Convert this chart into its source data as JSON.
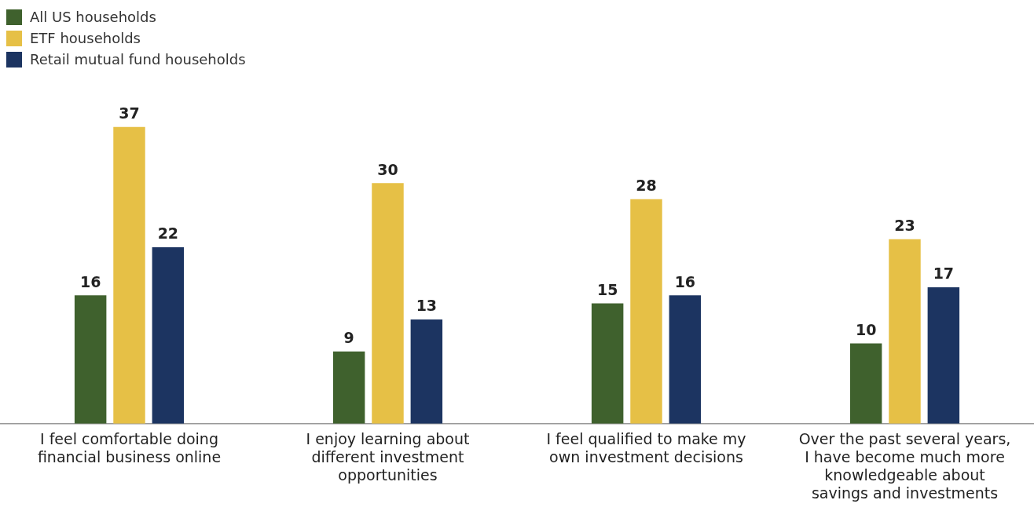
{
  "chart_data": {
    "type": "bar",
    "categories": [
      "I feel comfortable doing financial business online",
      "I enjoy learning about different investment opportunities",
      "I feel qualified to make my own investment decisions",
      "Over the past several years, I have become much more knowledgeable about savings and investments"
    ],
    "series": [
      {
        "name": "All US households",
        "color": "#3f612d",
        "values": [
          16,
          9,
          15,
          10
        ]
      },
      {
        "name": "ETF households",
        "color": "#e6c046",
        "values": [
          37,
          30,
          28,
          23
        ]
      },
      {
        "name": "Retail mutual fund households",
        "color": "#1c3461",
        "values": [
          22,
          13,
          16,
          17
        ]
      }
    ],
    "data_labels": true,
    "legend": "top left",
    "grid": false
  }
}
